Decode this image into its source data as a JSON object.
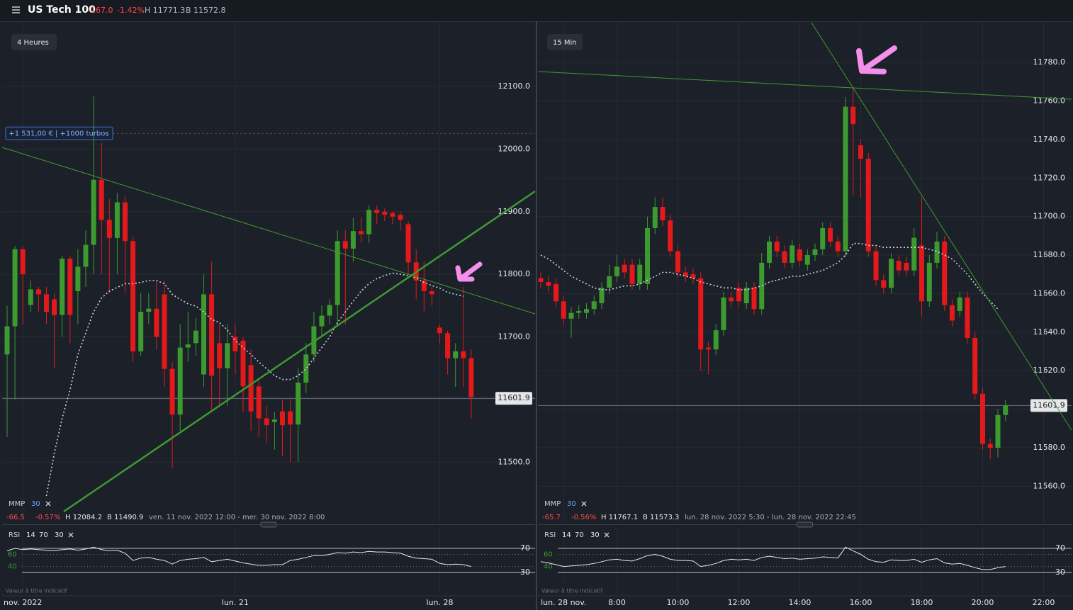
{
  "header": {
    "title": "US Tech 100",
    "change": "-167.0",
    "change_pct": "-1.42%",
    "high": "H 11771.3",
    "low": "B 11572.8"
  },
  "chart_data": [
    {
      "type": "candlestick",
      "title": "4 Heures",
      "up_color": "#3d9a2f",
      "down_color": "#e3191c",
      "categories": [
        null,
        null,
        "nov. 2022",
        null,
        null,
        null,
        null,
        null,
        null,
        null,
        null,
        null,
        null,
        null,
        null,
        null,
        null,
        null,
        null,
        null,
        null,
        null,
        null,
        null,
        null,
        null,
        null,
        null,
        null,
        "lun. 21",
        null,
        null,
        null,
        null,
        null,
        null,
        null,
        null,
        null,
        null,
        null,
        null,
        null,
        null,
        null,
        null,
        null,
        null,
        null,
        null,
        null,
        null,
        null,
        null,
        null,
        "lun. 28",
        null,
        null,
        null,
        null
      ],
      "open": [
        11672,
        11717,
        11840,
        11751,
        11776,
        11768,
        11760,
        11735,
        11825,
        11773,
        11812,
        11847,
        11951,
        11887,
        11858,
        11915,
        11853,
        11677,
        11740,
        11745,
        11768,
        11649,
        11576,
        11683,
        11690,
        11640,
        11768,
        11690,
        11650,
        11700,
        11694,
        11655,
        11621,
        11570,
        11564,
        11581,
        11581,
        11560,
        11627,
        11672,
        11717,
        11734,
        11751,
        11853,
        11841,
        11869,
        11864,
        11903,
        11900,
        11898,
        11895,
        11880,
        11819,
        11790,
        11773,
        11715,
        11706,
        11666,
        11677,
        11666
      ],
      "high": [
        11750,
        11845,
        11845,
        11790,
        11780,
        11780,
        11770,
        11830,
        11830,
        11840,
        11870,
        12084,
        12010,
        11920,
        11930,
        11925,
        11860,
        11770,
        11770,
        11790,
        11790,
        11660,
        11720,
        11740,
        11730,
        11800,
        11820,
        11720,
        11720,
        11720,
        11700,
        11680,
        11630,
        11590,
        11580,
        11600,
        11600,
        11650,
        11690,
        11740,
        11750,
        11760,
        11870,
        11870,
        11890,
        11890,
        11910,
        11910,
        11905,
        11900,
        11900,
        11885,
        11840,
        11820,
        11780,
        11720,
        11710,
        11690,
        11780,
        11680
      ],
      "low": [
        11540,
        11600,
        11720,
        11740,
        11740,
        11720,
        11650,
        11700,
        11690,
        11720,
        11780,
        11800,
        11800,
        11770,
        11800,
        11770,
        11660,
        11670,
        11720,
        11680,
        11620,
        11491,
        11550,
        11660,
        11670,
        11620,
        11580,
        11590,
        11590,
        11640,
        11580,
        11550,
        11540,
        11530,
        11520,
        11510,
        11500,
        11500,
        11610,
        11660,
        11700,
        11720,
        11720,
        11720,
        11820,
        11850,
        11850,
        11880,
        11885,
        11880,
        11870,
        11800,
        11760,
        11740,
        11750,
        11690,
        11640,
        11620,
        11620,
        11570
      ],
      "close": [
        11717,
        11840,
        11800,
        11776,
        11768,
        11740,
        11735,
        11825,
        11735,
        11812,
        11847,
        11951,
        11887,
        11858,
        11915,
        11853,
        11677,
        11740,
        11745,
        11700,
        11649,
        11576,
        11683,
        11688,
        11710,
        11768,
        11638,
        11650,
        11690,
        11677,
        11621,
        11581,
        11570,
        11559,
        11568,
        11559,
        11560,
        11627,
        11672,
        11717,
        11734,
        11751,
        11853,
        11841,
        11869,
        11864,
        11903,
        11898,
        11895,
        11892,
        11887,
        11819,
        11790,
        11773,
        11768,
        11706,
        11666,
        11677,
        11666,
        11604
      ],
      "ma": {
        "name": "MMP",
        "period": 30,
        "color": "#c9d3e6",
        "values": [
          null,
          null,
          null,
          null,
          null,
          11446,
          11514,
          11570,
          11615,
          11672,
          11706,
          11740,
          11762,
          11773,
          11779,
          11785,
          11785,
          11787,
          11790,
          11790,
          11785,
          11768,
          11760,
          11753,
          11749,
          11740,
          11728,
          11723,
          11711,
          11694,
          11683,
          11672,
          11660,
          11649,
          11638,
          11632,
          11632,
          11638,
          11649,
          11666,
          11683,
          11700,
          11723,
          11740,
          11757,
          11773,
          11785,
          11793,
          11798,
          11802,
          11800,
          11798,
          11794,
          11787,
          11782,
          11778,
          11771,
          11768,
          11765,
          null
        ]
      },
      "ylim": [
        11403,
        12203
      ],
      "yticks": [
        {
          "value": 11500,
          "label": "11500.0"
        },
        {
          "value": 11600,
          "label": "11600.0"
        },
        {
          "value": 11700,
          "label": "11700.0"
        },
        {
          "value": 11800,
          "label": "11800.0"
        },
        {
          "value": 11900,
          "label": "11900.0"
        },
        {
          "value": 12000,
          "label": "12000.0"
        },
        {
          "value": 12100,
          "label": "12100.0"
        }
      ],
      "last": 11601.9,
      "position": {
        "label": "+1 531,00 € | +1000 turbos",
        "level": 12025
      },
      "info": [
        "-66.5",
        "-0.57%",
        "H 12084.2",
        "B 11490.9",
        "ven. 11 nov. 2022 12:00 - mer. 30 nov. 2022 8:00"
      ],
      "note": "Valeur à titre indicatif",
      "rsi": {
        "name": "RSI",
        "params": [
          14,
          70,
          30
        ],
        "ylim": [
          -5,
          104
        ],
        "yticks": [
          30,
          70
        ],
        "midticks": [
          40,
          60
        ],
        "values": [
          66,
          70,
          68,
          69,
          68,
          67,
          66,
          68,
          69,
          67,
          69,
          72,
          68,
          66,
          67,
          62,
          50,
          54,
          55,
          52,
          50,
          44,
          50,
          52,
          53,
          55,
          48,
          50,
          52,
          49,
          46,
          44,
          42,
          42,
          43,
          43,
          50,
          52,
          55,
          58,
          58,
          60,
          63,
          62,
          64,
          63,
          65,
          64,
          64,
          63,
          62,
          57,
          54,
          53,
          52,
          45,
          43,
          44,
          43,
          40
        ]
      }
    },
    {
      "type": "candlestick",
      "title": "15 Min",
      "up_color": "#3d9a2f",
      "down_color": "#e3191c",
      "categories": [
        null,
        null,
        null,
        "lun. 28 nov.",
        null,
        null,
        null,
        null,
        null,
        null,
        "8:00",
        null,
        null,
        null,
        null,
        null,
        null,
        null,
        "10:00",
        null,
        null,
        null,
        null,
        null,
        null,
        null,
        "12:00",
        null,
        null,
        null,
        null,
        null,
        null,
        null,
        "14:00",
        null,
        null,
        null,
        null,
        null,
        null,
        null,
        "16:00",
        null,
        null,
        null,
        null,
        null,
        null,
        null,
        "18:00",
        null,
        null,
        null,
        null,
        null,
        null,
        null,
        "20:00",
        null,
        null,
        null,
        null,
        null,
        null,
        null,
        "22:00"
      ],
      "open": [
        11668,
        11666,
        11665,
        11656,
        11647,
        11650,
        11650,
        11652,
        11655,
        11663,
        11669,
        11675,
        11675,
        11665,
        11665,
        11694,
        11705,
        11698,
        11682,
        11671,
        11670,
        11668,
        11632,
        11631,
        11641,
        11658,
        11663,
        11655,
        11663,
        11652,
        11676,
        11687,
        11682,
        11676,
        11683,
        11675,
        11680,
        11683,
        11694,
        11687,
        11682,
        11757,
        11737,
        11730,
        11682,
        11667,
        11663,
        11677,
        11676,
        11672,
        11685,
        11656,
        11676,
        11687,
        11654,
        11651,
        11658,
        11637,
        11608,
        11582,
        11580,
        11597,
        null,
        null,
        null,
        null,
        null
      ],
      "high": [
        11671,
        11669,
        11668,
        11659,
        11653,
        11654,
        11655,
        11659,
        11666,
        11675,
        11680,
        11678,
        11678,
        11678,
        11700,
        11710,
        11710,
        11701,
        11685,
        11674,
        11673,
        11671,
        11635,
        11644,
        11661,
        11661,
        11666,
        11666,
        11666,
        11681,
        11690,
        11690,
        11685,
        11688,
        11686,
        11683,
        11686,
        11697,
        11697,
        11690,
        11762,
        11767,
        11740,
        11733,
        11685,
        11670,
        11681,
        11680,
        11679,
        11694,
        11710,
        11680,
        11692,
        11690,
        11657,
        11661,
        11661,
        11640,
        11611,
        11585,
        11600,
        11605,
        null,
        null,
        null,
        null,
        null
      ],
      "low": [
        11663,
        11661,
        11653,
        11644,
        11637,
        11647,
        11647,
        11649,
        11652,
        11660,
        11666,
        11668,
        11662,
        11662,
        11662,
        11691,
        11695,
        11679,
        11668,
        11666,
        11665,
        11620,
        11618,
        11628,
        11638,
        11653,
        11653,
        11652,
        11649,
        11649,
        11673,
        11679,
        11673,
        11673,
        11674,
        11672,
        11677,
        11680,
        11684,
        11679,
        11679,
        11711,
        11710,
        11679,
        11664,
        11660,
        11660,
        11669,
        11669,
        11669,
        11648,
        11653,
        11673,
        11651,
        11643,
        11648,
        11634,
        11605,
        11579,
        11574,
        11575,
        11594,
        null,
        null,
        null,
        null,
        null
      ],
      "close": [
        11666,
        11664,
        11656,
        11647,
        11650,
        11651,
        11652,
        11656,
        11663,
        11669,
        11674,
        11671,
        11665,
        11675,
        11694,
        11705,
        11698,
        11682,
        11671,
        11669,
        11668,
        11631,
        11631,
        11641,
        11658,
        11656,
        11656,
        11663,
        11652,
        11676,
        11687,
        11682,
        11676,
        11685,
        11677,
        11680,
        11683,
        11694,
        11687,
        11682,
        11757,
        11748,
        11730,
        11682,
        11667,
        11663,
        11678,
        11672,
        11672,
        11689,
        11656,
        11676,
        11687,
        11654,
        11646,
        11658,
        11637,
        11608,
        11582,
        11580,
        11597,
        11602,
        null,
        null,
        null,
        null,
        null
      ],
      "ma": {
        "name": "MMP",
        "period": 30,
        "color": "#c9d3e6",
        "values": [
          11680,
          11678,
          11675,
          11672,
          11669,
          11667,
          11665,
          11663,
          11662,
          11662,
          11663,
          11664,
          11664,
          11665,
          11667,
          11669,
          11671,
          11671,
          11670,
          11669,
          11668,
          11666,
          11665,
          11664,
          11663,
          11663,
          11662,
          11662,
          11663,
          11664,
          11666,
          11667,
          11668,
          11669,
          11669,
          11670,
          11671,
          11672,
          11674,
          11676,
          11680,
          11686,
          11686,
          11685,
          11685,
          11684,
          11684,
          11684,
          11684,
          11684,
          11684,
          11683,
          11682,
          11680,
          11678,
          11674,
          11670,
          11665,
          11660,
          11656,
          11652,
          null,
          null,
          null,
          null,
          null,
          null
        ]
      },
      "ylim": [
        11541,
        11801
      ],
      "yticks": [
        {
          "value": 11560,
          "label": "11560.0"
        },
        {
          "value": 11580,
          "label": "11580.0"
        },
        {
          "value": 11600,
          "label": "11600.0"
        },
        {
          "value": 11620,
          "label": "11620.0"
        },
        {
          "value": 11640,
          "label": "11640.0"
        },
        {
          "value": 11660,
          "label": "11660.0"
        },
        {
          "value": 11680,
          "label": "11680.0"
        },
        {
          "value": 11700,
          "label": "11700.0"
        },
        {
          "value": 11720,
          "label": "11720.0"
        },
        {
          "value": 11740,
          "label": "11740.0"
        },
        {
          "value": 11760,
          "label": "11760.0"
        },
        {
          "value": 11780,
          "label": "11780.0"
        }
      ],
      "last": 11601.9,
      "info": [
        "-65.7",
        "-0.56%",
        "H 11767.1",
        "B 11573.3",
        "lun. 28 nov. 2022 5:30 - lun. 28 nov. 2022 22:45"
      ],
      "note": "Valeur à titre indicatif",
      "rsi": {
        "name": "RSI",
        "params": [
          14,
          70,
          30
        ],
        "ylim": [
          -5,
          104
        ],
        "yticks": [
          30,
          70
        ],
        "midticks": [
          40,
          60
        ],
        "values": [
          48,
          46,
          43,
          40,
          41,
          42,
          43,
          45,
          48,
          51,
          52,
          50,
          49,
          53,
          58,
          60,
          57,
          52,
          50,
          50,
          49,
          40,
          42,
          45,
          50,
          52,
          51,
          52,
          50,
          55,
          57,
          55,
          53,
          54,
          52,
          53,
          54,
          56,
          55,
          54,
          72,
          66,
          60,
          52,
          48,
          47,
          51,
          50,
          50,
          52,
          47,
          51,
          53,
          46,
          44,
          45,
          42,
          38,
          35,
          35,
          38,
          40,
          null,
          null,
          null,
          null,
          null
        ]
      }
    }
  ]
}
